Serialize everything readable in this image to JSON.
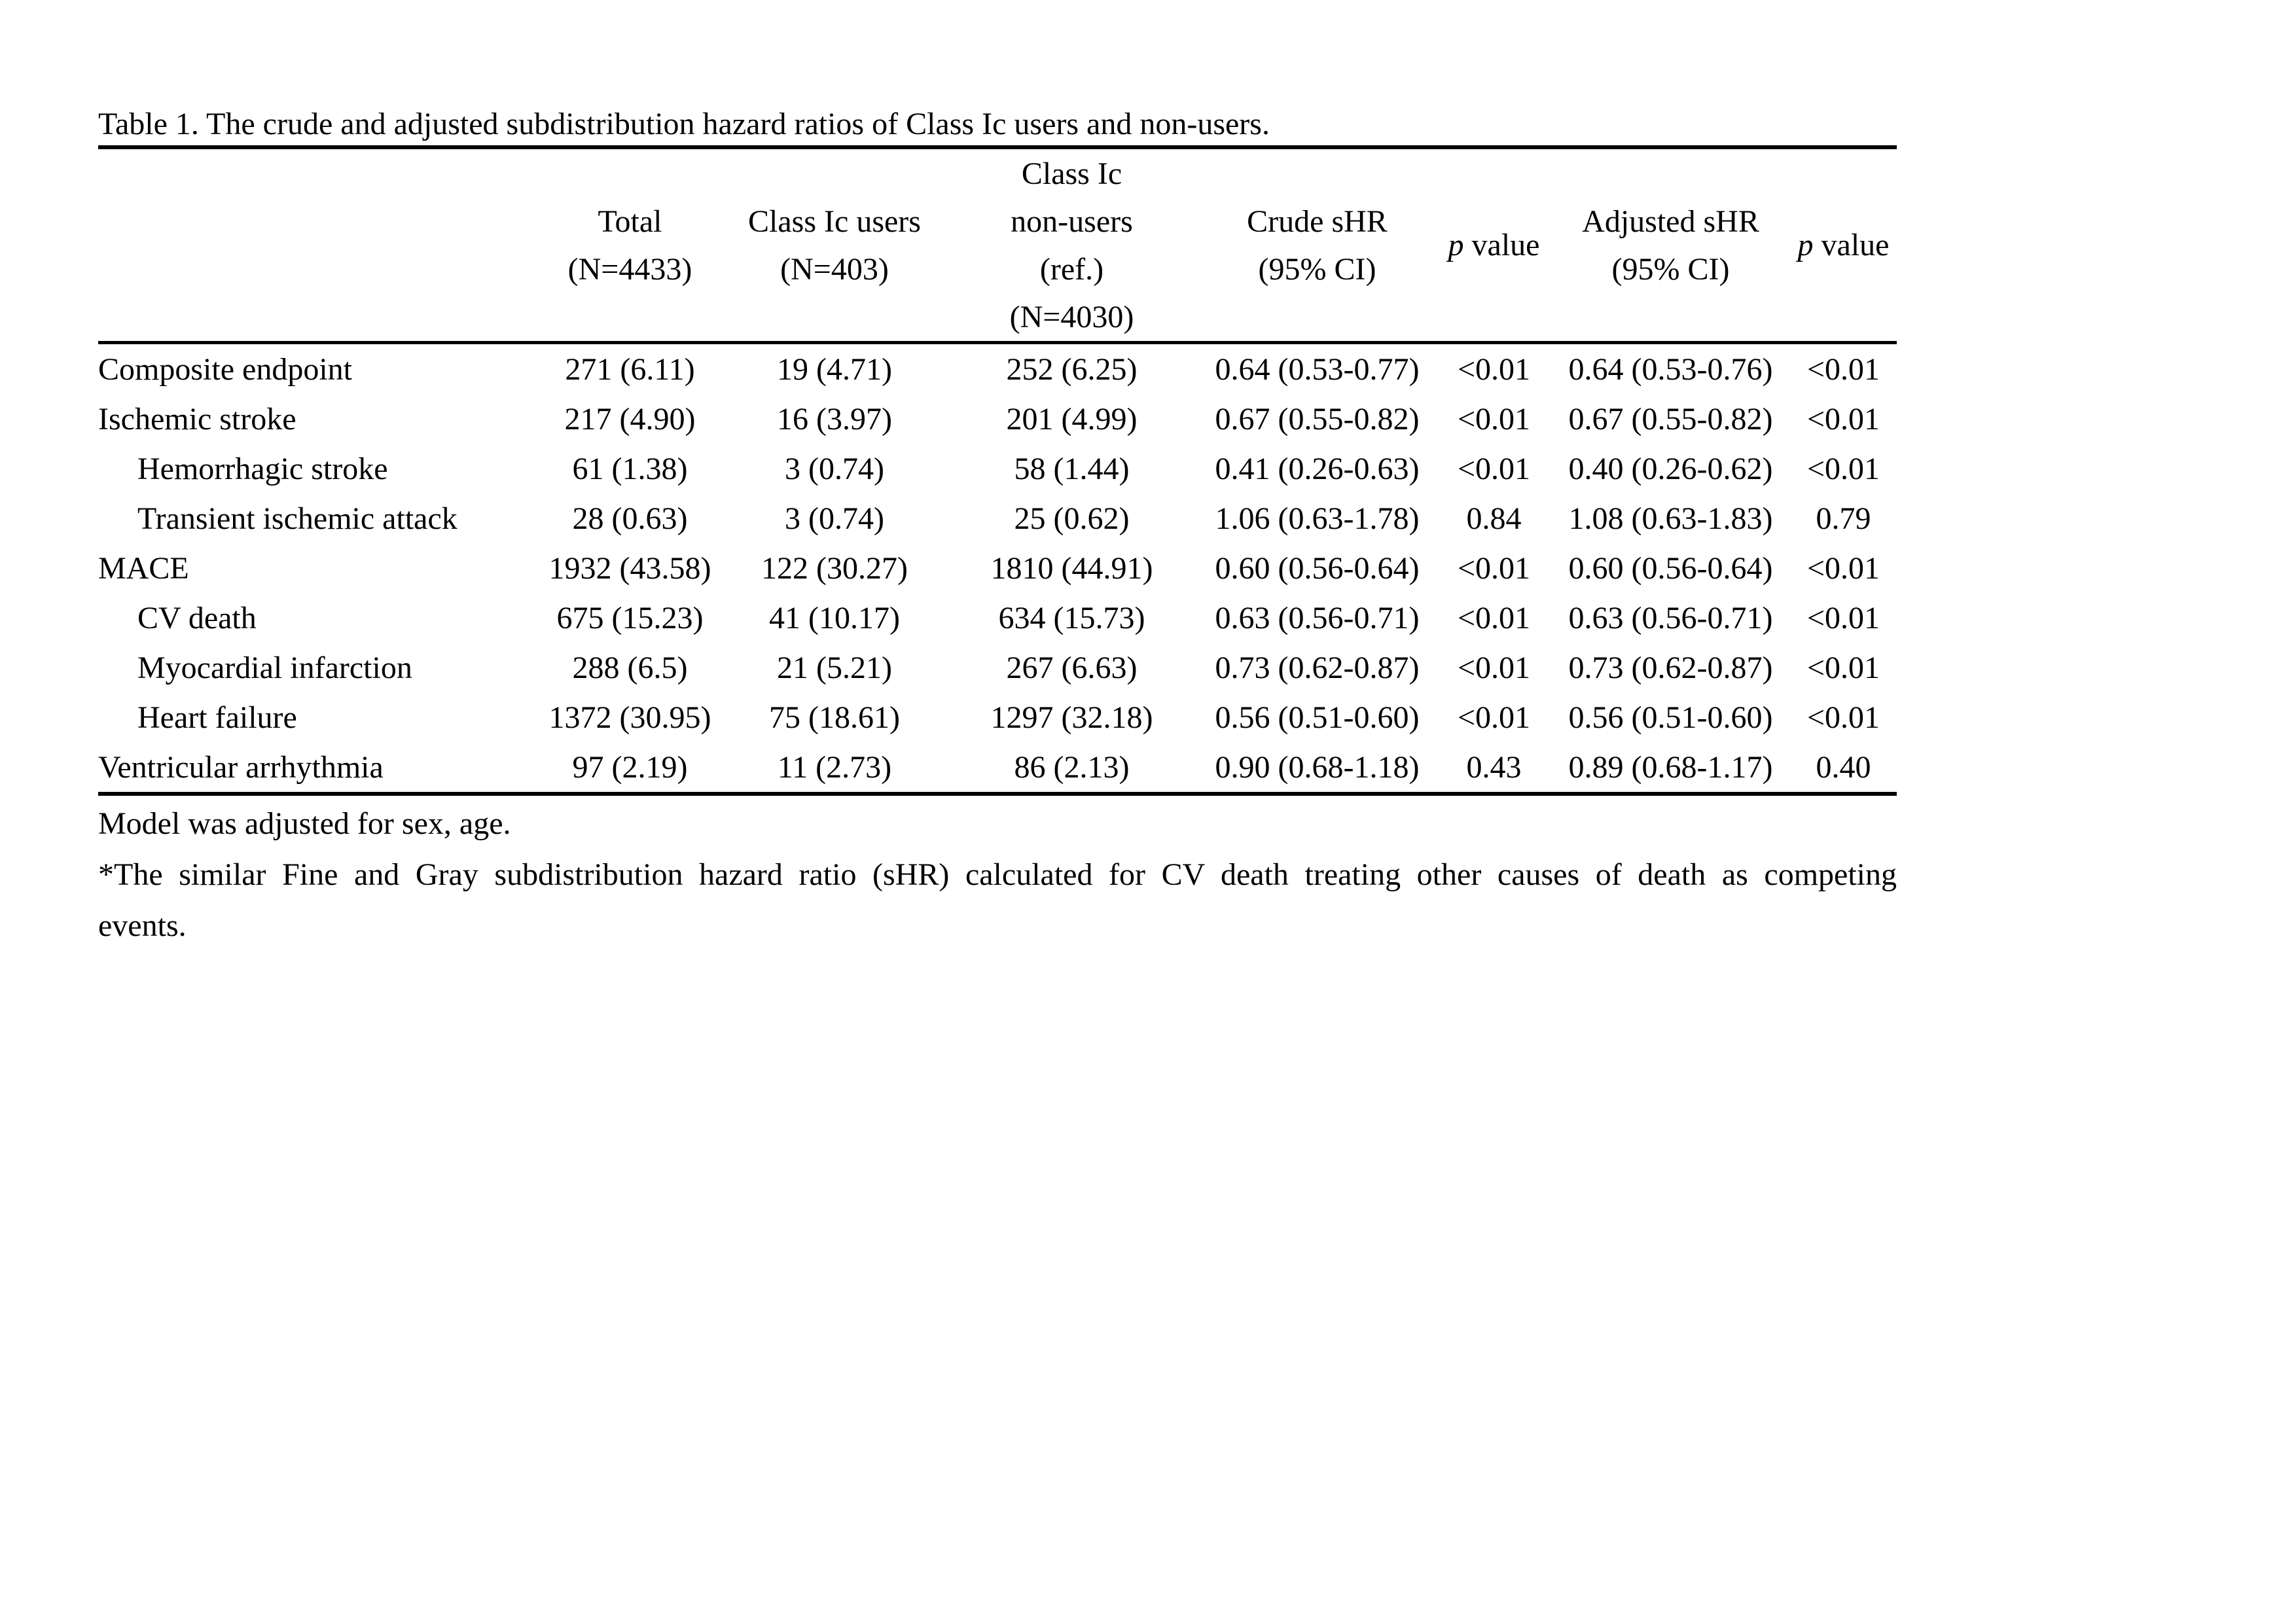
{
  "doc": {
    "title": "Table 1. The crude and adjusted subdistribution hazard ratios of Class Ic users and non-users."
  },
  "table": {
    "header": {
      "outcome": "",
      "total": {
        "line1": "Total",
        "line2": "(N=4433)"
      },
      "users": {
        "line1": "Class Ic users",
        "line2": "(N=403)"
      },
      "nonusers": {
        "line1": "Class Ic",
        "line2": "non-users",
        "line3": "(ref.)",
        "line4": "(N=4030)"
      },
      "crude": {
        "line1": "Crude sHR",
        "line2": "(95% CI)"
      },
      "p1": {
        "italic": "p",
        "rest": " value"
      },
      "adjusted": {
        "line1": "Adjusted sHR",
        "line2": "(95% CI)"
      },
      "p2": {
        "italic": "p",
        "rest": " value"
      }
    },
    "rows": [
      {
        "label": "Composite endpoint",
        "total": "271 (6.11)",
        "users": "19 (4.71)",
        "nonusers": "252 (6.25)",
        "crude": "0.64 (0.53-0.77)",
        "p1": "<0.01",
        "adjusted": "0.64 (0.53-0.76)",
        "p2": "<0.01"
      },
      {
        "label": "Ischemic stroke",
        "total": "217 (4.90)",
        "users": "16 (3.97)",
        "nonusers": "201 (4.99)",
        "crude": "0.67 (0.55-0.82)",
        "p1": "<0.01",
        "adjusted": "0.67 (0.55-0.82)",
        "p2": "<0.01"
      },
      {
        "label": "Hemorrhagic stroke",
        "total": "61 (1.38)",
        "users": "3 (0.74)",
        "nonusers": "58 (1.44)",
        "crude": "0.41 (0.26-0.63)",
        "p1": "<0.01",
        "adjusted": "0.40 (0.26-0.62)",
        "p2": "<0.01"
      },
      {
        "label": "Transient ischemic attack",
        "total": "28 (0.63)",
        "users": "3 (0.74)",
        "nonusers": "25 (0.62)",
        "crude": "1.06 (0.63-1.78)",
        "p1": "0.84",
        "adjusted": "1.08 (0.63-1.83)",
        "p2": "0.79"
      },
      {
        "label": "MACE",
        "total": "1932 (43.58)",
        "users": "122 (30.27)",
        "nonusers": "1810 (44.91)",
        "crude": "0.60 (0.56-0.64)",
        "p1": "<0.01",
        "adjusted": "0.60 (0.56-0.64)",
        "p2": "<0.01"
      },
      {
        "label": "CV death",
        "total": "675 (15.23)",
        "users": "41 (10.17)",
        "nonusers": "634 (15.73)",
        "crude": "0.63 (0.56-0.71)",
        "p1": "<0.01",
        "adjusted": "0.63 (0.56-0.71)",
        "p2": "<0.01"
      },
      {
        "label": "Myocardial infarction",
        "total": "288 (6.5)",
        "users": "21 (5.21)",
        "nonusers": "267 (6.63)",
        "crude": "0.73 (0.62-0.87)",
        "p1": "<0.01",
        "adjusted": "0.73 (0.62-0.87)",
        "p2": "<0.01"
      },
      {
        "label": "Heart failure",
        "total": "1372 (30.95)",
        "users": "75 (18.61)",
        "nonusers": "1297 (32.18)",
        "crude": "0.56 (0.51-0.60)",
        "p1": "<0.01",
        "adjusted": "0.56 (0.51-0.60)",
        "p2": "<0.01"
      },
      {
        "label": "Ventricular arrhythmia",
        "total": "97 (2.19)",
        "users": "11 (2.73)",
        "nonusers": "86 (2.13)",
        "crude": "0.90 (0.68-1.18)",
        "p1": "0.43",
        "adjusted": "0.89 (0.68-1.17)",
        "p2": "0.40"
      }
    ],
    "footnotes": {
      "line1": "Model was adjusted for sex, age.",
      "line2": "*The similar Fine and Gray subdistribution hazard ratio (sHR) calculated for CV death treating other causes of death as competing",
      "line3": "events."
    }
  }
}
